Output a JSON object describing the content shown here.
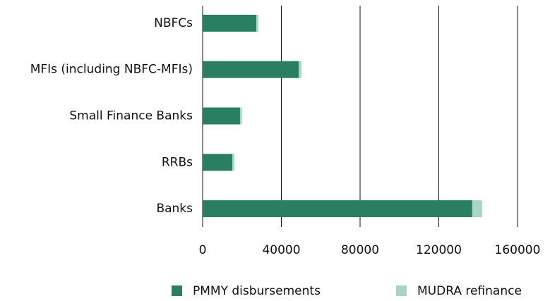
{
  "chart_data": {
    "type": "stacked-barh",
    "categories": [
      "NBFCs",
      "MFIs (including NBFC-MFIs)",
      "Small Finance Banks",
      "RRBs",
      "Banks"
    ],
    "series": [
      {
        "name": "PMMY disbursements",
        "color": "#2a7f62",
        "values": [
          27300,
          48800,
          19000,
          15100,
          137000
        ]
      },
      {
        "name": "MUDRA refinance",
        "color": "#a8d5c4",
        "values": [
          1000,
          1400,
          1000,
          1000,
          5000
        ]
      }
    ],
    "xlim": [
      0,
      160000
    ],
    "xticks": [
      0,
      40000,
      80000,
      120000,
      160000
    ],
    "grid": true
  }
}
